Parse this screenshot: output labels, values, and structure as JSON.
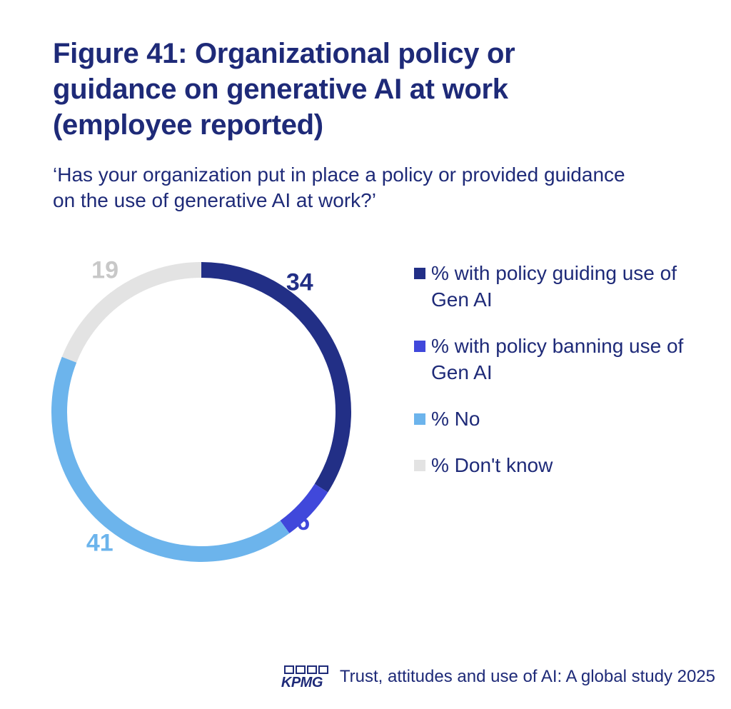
{
  "title": "Figure 41: Organizational policy or guidance on generative AI at work (employee reported)",
  "subtitle": "‘Has your organization put in place a policy or provided guidance on the use of generative AI at work?’",
  "chart_data": {
    "type": "pie",
    "variant": "donut",
    "start_angle_deg": 0,
    "direction": "clockwise",
    "slices": [
      {
        "label": "% with policy guiding use of Gen AI",
        "value": 34,
        "display": "34",
        "color": "#222f86"
      },
      {
        "label": "% with policy banning use of Gen AI",
        "value": 6,
        "display": "6",
        "color": "#4048db"
      },
      {
        "label": "% No",
        "value": 41,
        "display": "41",
        "color": "#6cb4ec"
      },
      {
        "label": "% Don't know",
        "value": 19,
        "display": "19",
        "color": "#e3e3e3"
      }
    ],
    "legend_position": "right"
  },
  "footer": {
    "brand": "KPMG",
    "source": "Trust, attitudes and use of AI: A global study 2025"
  }
}
